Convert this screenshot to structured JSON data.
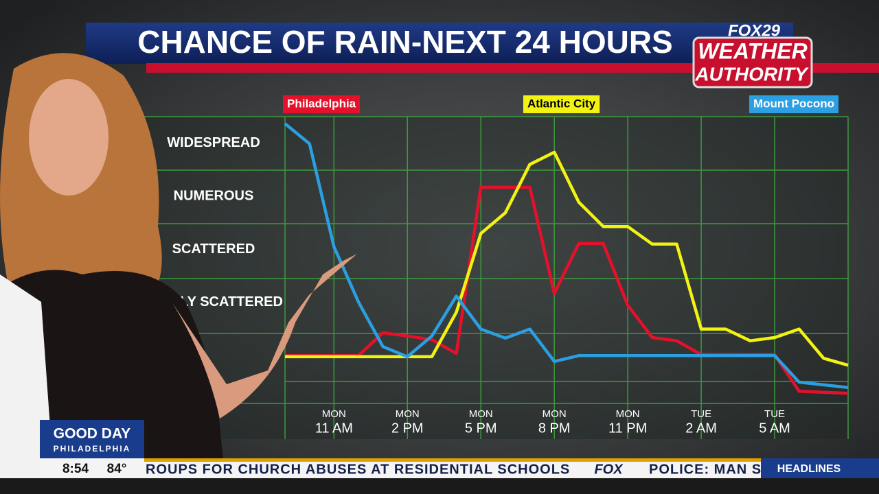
{
  "header": {
    "title": "CHANCE OF RAIN-NEXT 24 HOURS",
    "logo_top": "FOX29",
    "logo_middle": "WEATHER",
    "logo_bottom": "AUTHORITY"
  },
  "chart_data": {
    "type": "line",
    "categories": [
      null,
      null,
      "11 AM",
      null,
      null,
      "2 PM",
      null,
      null,
      "5 PM",
      null,
      null,
      "8 PM",
      null,
      null,
      "11 PM",
      null,
      null,
      "2 AM",
      null,
      null,
      "5 AM",
      null,
      null,
      null
    ],
    "category_days": [
      null,
      null,
      "MON",
      null,
      null,
      "MON",
      null,
      null,
      "MON",
      null,
      null,
      "MON",
      null,
      null,
      "MON",
      null,
      null,
      "TUE",
      null,
      null,
      "TUE",
      null,
      null,
      null
    ],
    "ylim": [
      0.1,
      5.5
    ],
    "yticks": [
      {
        "value": 5,
        "label": "WIDESPREAD"
      },
      {
        "value": 4,
        "label": "NUMEROUS"
      },
      {
        "value": 3,
        "label": "SCATTERED"
      },
      {
        "value": 2,
        "label": "WIDELY SCATTERED"
      }
    ],
    "grid": true,
    "series": [
      {
        "name": "Philadelphia",
        "color": "#e5112b",
        "values": [
          1.0,
          1.0,
          1.0,
          1.0,
          1.43,
          1.37,
          1.3,
          1.04,
          4.17,
          4.17,
          4.17,
          2.17,
          3.11,
          3.11,
          1.95,
          1.34,
          1.28,
          1.02,
          1.02,
          1.02,
          1.02,
          0.33,
          0.31,
          0.29
        ]
      },
      {
        "name": "Atlantic City",
        "color": "#f3f312",
        "values": [
          0.98,
          0.98,
          0.98,
          0.98,
          0.98,
          0.98,
          0.98,
          1.82,
          3.3,
          3.69,
          4.6,
          4.83,
          3.89,
          3.43,
          3.43,
          3.1,
          3.1,
          1.5,
          1.5,
          1.28,
          1.34,
          1.5,
          0.95,
          0.82
        ]
      },
      {
        "name": "Mount Pocono",
        "color": "#2b9fe2",
        "values": [
          5.37,
          4.99,
          3.05,
          2.01,
          1.17,
          0.98,
          1.37,
          2.12,
          1.5,
          1.33,
          1.5,
          0.89,
          1.0,
          1.0,
          1.0,
          1.0,
          1.0,
          1.0,
          1.0,
          1.0,
          1.0,
          0.5,
          0.45,
          0.4
        ]
      }
    ]
  },
  "bug": {
    "brand_top": "GOOD DAY",
    "brand_bottom": "PHILADELPHIA",
    "time": "8:54",
    "temperature": "84°"
  },
  "ticker": {
    "story": "ROUPS FOR CHURCH ABUSES AT RESIDENTIAL SCHOOLS",
    "separator": "FOX",
    "next_story": "POLICE: MAN S",
    "section": "HEADLINES"
  }
}
